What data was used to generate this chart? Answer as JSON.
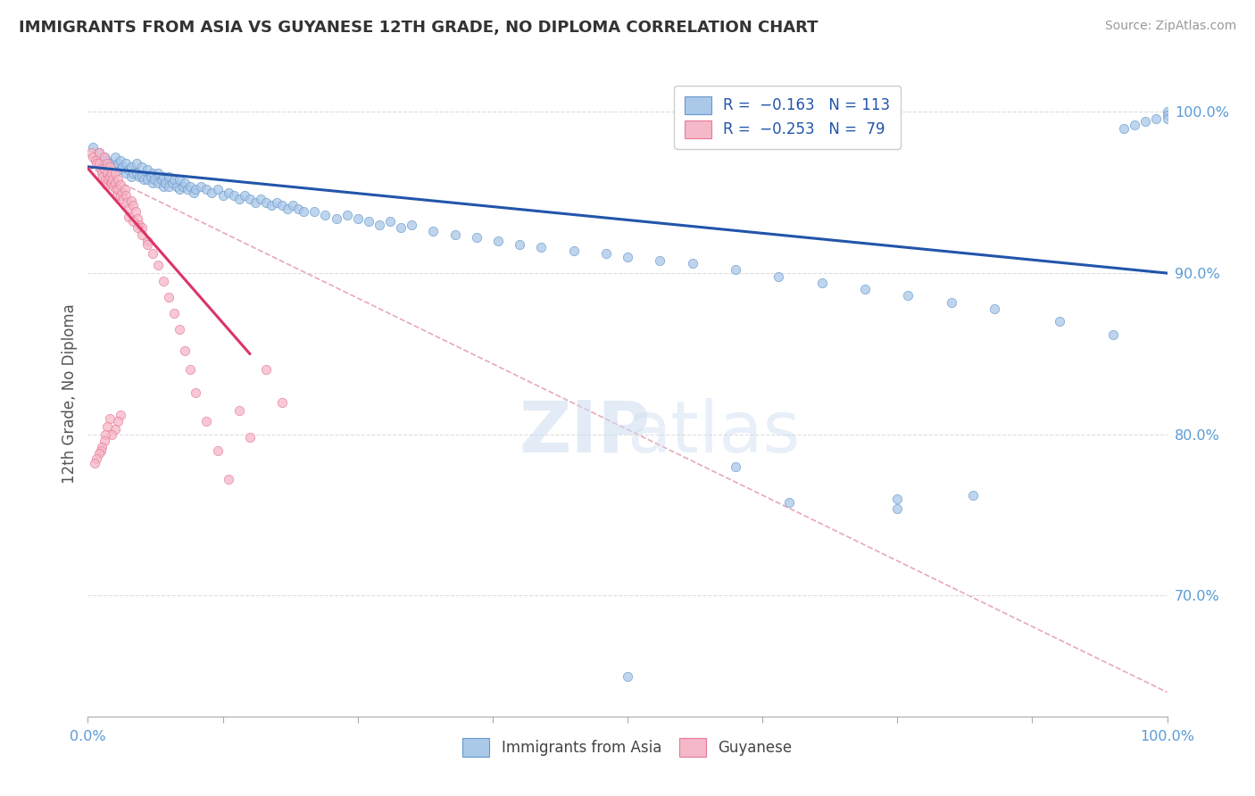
{
  "title": "IMMIGRANTS FROM ASIA VS GUYANESE 12TH GRADE, NO DIPLOMA CORRELATION CHART",
  "source": "Source: ZipAtlas.com",
  "ylabel": "12th Grade, No Diploma",
  "xlim": [
    0.0,
    1.0
  ],
  "ylim": [
    0.625,
    1.025
  ],
  "yticks": [
    0.7,
    0.8,
    0.9,
    1.0
  ],
  "ytick_labels": [
    "70.0%",
    "80.0%",
    "90.0%",
    "100.0%"
  ],
  "xticks": [
    0.0,
    0.125,
    0.25,
    0.375,
    0.5,
    0.625,
    0.75,
    0.875,
    1.0
  ],
  "xtick_labels_shown": [
    "0.0%",
    "",
    "",
    "",
    "",
    "",
    "",
    "",
    "100.0%"
  ],
  "blue_scatter_x": [
    0.005,
    0.01,
    0.015,
    0.015,
    0.018,
    0.02,
    0.022,
    0.025,
    0.025,
    0.028,
    0.03,
    0.03,
    0.032,
    0.035,
    0.035,
    0.038,
    0.04,
    0.04,
    0.042,
    0.045,
    0.045,
    0.048,
    0.05,
    0.05,
    0.052,
    0.055,
    0.055,
    0.058,
    0.06,
    0.06,
    0.062,
    0.065,
    0.065,
    0.068,
    0.07,
    0.07,
    0.072,
    0.075,
    0.075,
    0.078,
    0.08,
    0.082,
    0.085,
    0.085,
    0.088,
    0.09,
    0.092,
    0.095,
    0.098,
    0.1,
    0.105,
    0.11,
    0.115,
    0.12,
    0.125,
    0.13,
    0.135,
    0.14,
    0.145,
    0.15,
    0.155,
    0.16,
    0.165,
    0.17,
    0.175,
    0.18,
    0.185,
    0.19,
    0.195,
    0.2,
    0.21,
    0.22,
    0.23,
    0.24,
    0.25,
    0.26,
    0.27,
    0.28,
    0.29,
    0.3,
    0.32,
    0.34,
    0.36,
    0.38,
    0.4,
    0.42,
    0.45,
    0.48,
    0.5,
    0.53,
    0.56,
    0.6,
    0.64,
    0.68,
    0.72,
    0.76,
    0.8,
    0.84,
    0.9,
    0.95,
    0.6,
    0.65,
    0.75,
    0.5,
    0.99,
    1.0,
    1.0,
    1.0,
    0.98,
    0.97,
    0.96,
    0.75,
    0.82
  ],
  "blue_scatter_y": [
    0.978,
    0.975,
    0.972,
    0.968,
    0.97,
    0.968,
    0.965,
    0.972,
    0.966,
    0.968,
    0.97,
    0.964,
    0.966,
    0.968,
    0.962,
    0.964,
    0.966,
    0.96,
    0.962,
    0.968,
    0.962,
    0.96,
    0.966,
    0.96,
    0.958,
    0.964,
    0.958,
    0.96,
    0.962,
    0.956,
    0.958,
    0.962,
    0.956,
    0.958,
    0.96,
    0.954,
    0.956,
    0.96,
    0.954,
    0.956,
    0.958,
    0.954,
    0.958,
    0.952,
    0.954,
    0.956,
    0.952,
    0.954,
    0.95,
    0.952,
    0.954,
    0.952,
    0.95,
    0.952,
    0.948,
    0.95,
    0.948,
    0.946,
    0.948,
    0.946,
    0.944,
    0.946,
    0.944,
    0.942,
    0.944,
    0.942,
    0.94,
    0.942,
    0.94,
    0.938,
    0.938,
    0.936,
    0.934,
    0.936,
    0.934,
    0.932,
    0.93,
    0.932,
    0.928,
    0.93,
    0.926,
    0.924,
    0.922,
    0.92,
    0.918,
    0.916,
    0.914,
    0.912,
    0.91,
    0.908,
    0.906,
    0.902,
    0.898,
    0.894,
    0.89,
    0.886,
    0.882,
    0.878,
    0.87,
    0.862,
    0.78,
    0.758,
    0.754,
    0.65,
    0.996,
    1.0,
    0.998,
    0.996,
    0.994,
    0.992,
    0.99,
    0.76,
    0.762
  ],
  "pink_scatter_x": [
    0.003,
    0.005,
    0.007,
    0.008,
    0.01,
    0.01,
    0.012,
    0.013,
    0.014,
    0.015,
    0.015,
    0.016,
    0.017,
    0.018,
    0.018,
    0.019,
    0.02,
    0.02,
    0.021,
    0.022,
    0.022,
    0.023,
    0.024,
    0.025,
    0.025,
    0.026,
    0.027,
    0.028,
    0.028,
    0.03,
    0.03,
    0.032,
    0.033,
    0.034,
    0.035,
    0.036,
    0.038,
    0.04,
    0.042,
    0.044,
    0.046,
    0.048,
    0.05,
    0.055,
    0.06,
    0.065,
    0.07,
    0.075,
    0.08,
    0.085,
    0.09,
    0.095,
    0.1,
    0.11,
    0.12,
    0.13,
    0.14,
    0.15,
    0.165,
    0.18,
    0.038,
    0.042,
    0.046,
    0.05,
    0.055,
    0.03,
    0.028,
    0.025,
    0.022,
    0.02,
    0.018,
    0.016,
    0.015,
    0.013,
    0.012,
    0.01,
    0.008,
    0.006
  ],
  "pink_scatter_y": [
    0.975,
    0.972,
    0.97,
    0.968,
    0.975,
    0.968,
    0.965,
    0.962,
    0.96,
    0.972,
    0.965,
    0.958,
    0.955,
    0.968,
    0.962,
    0.958,
    0.966,
    0.96,
    0.956,
    0.962,
    0.956,
    0.958,
    0.954,
    0.962,
    0.956,
    0.952,
    0.948,
    0.958,
    0.952,
    0.955,
    0.948,
    0.95,
    0.946,
    0.952,
    0.948,
    0.944,
    0.94,
    0.945,
    0.942,
    0.938,
    0.934,
    0.93,
    0.928,
    0.92,
    0.912,
    0.905,
    0.895,
    0.885,
    0.875,
    0.865,
    0.852,
    0.84,
    0.826,
    0.808,
    0.79,
    0.772,
    0.815,
    0.798,
    0.84,
    0.82,
    0.935,
    0.932,
    0.928,
    0.924,
    0.918,
    0.812,
    0.808,
    0.803,
    0.8,
    0.81,
    0.805,
    0.8,
    0.796,
    0.792,
    0.79,
    0.788,
    0.785,
    0.782
  ],
  "blue_line_x": [
    0.0,
    1.0
  ],
  "blue_line_y": [
    0.966,
    0.9
  ],
  "pink_line_x": [
    0.0,
    0.15
  ],
  "pink_line_y": [
    0.965,
    0.85
  ],
  "dashed_line_x": [
    0.0,
    1.0
  ],
  "dashed_line_y": [
    0.966,
    0.64
  ],
  "scatter_size": 55,
  "blue_color": "#aac8e8",
  "pink_color": "#f5b8c8",
  "blue_edge": "#6699cc",
  "pink_edge": "#e87898",
  "blue_line_color": "#2255aa",
  "pink_line_color": "#dd3366",
  "dashed_line_color": "#e8a8b8",
  "grid_color": "#dddddd",
  "bg_color": "#ffffff",
  "title_color": "#333333",
  "axis_color": "#5b9bd5",
  "source_color": "#999999"
}
